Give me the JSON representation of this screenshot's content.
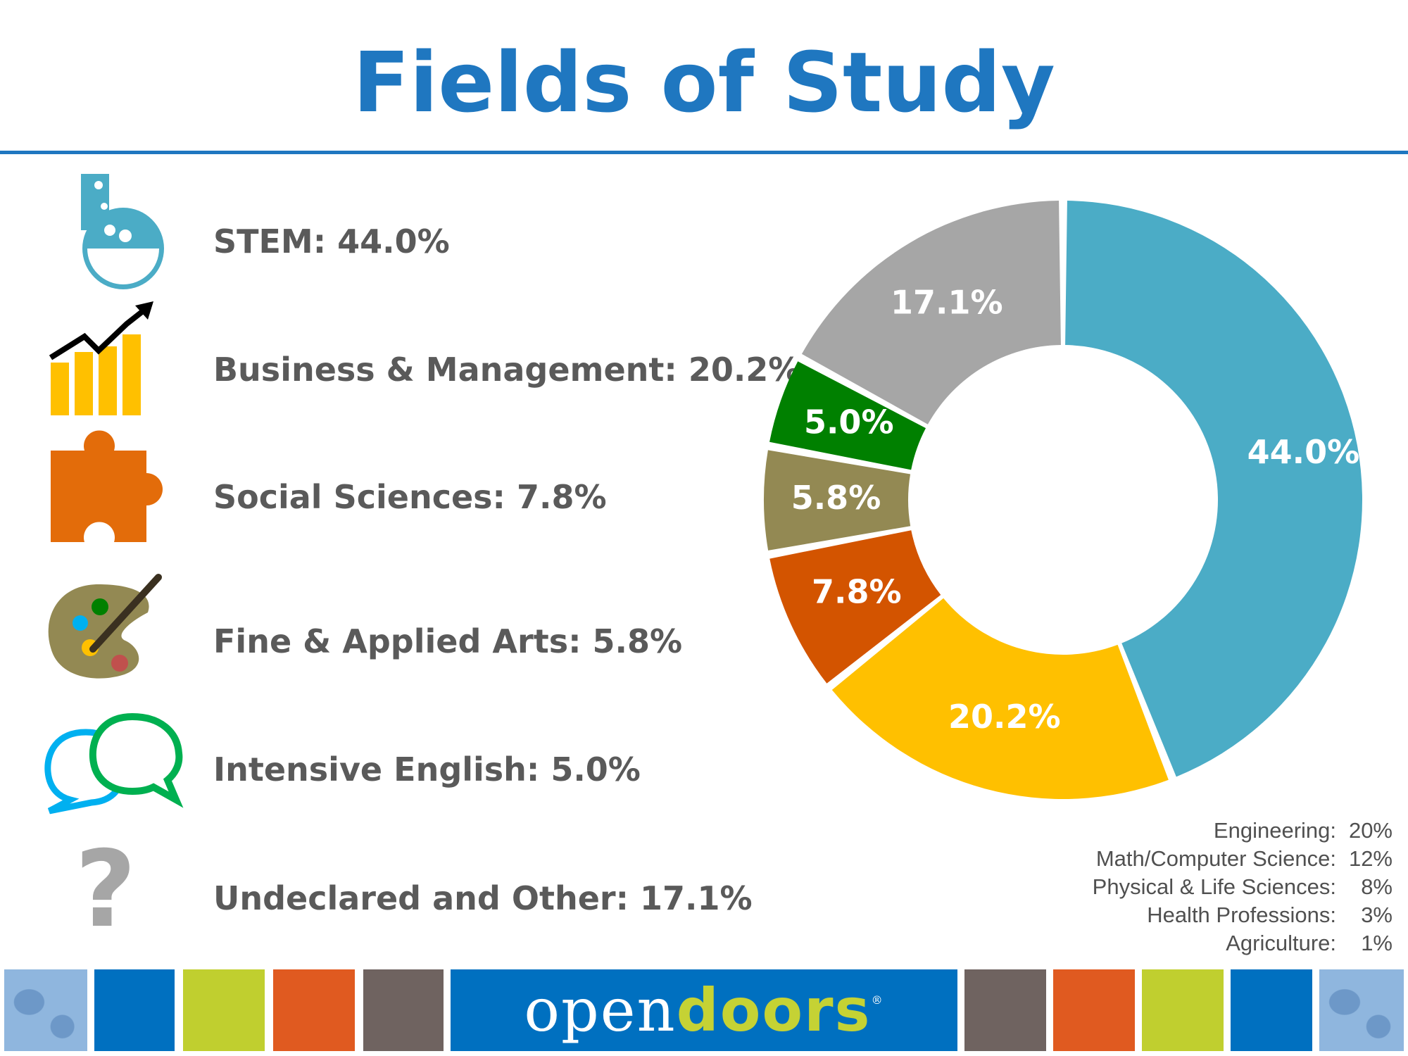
{
  "title": "Fields of Study",
  "fields": [
    {
      "label": "STEM:  44.0%",
      "icon": "flask-icon",
      "color": "#4bacc6"
    },
    {
      "label": "Business & Management:  20.2%",
      "icon": "growth-chart-icon",
      "color": "#ffc000"
    },
    {
      "label": "Social Sciences:  7.8%",
      "icon": "puzzle-piece-icon",
      "color": "#e36c0a"
    },
    {
      "label": "Fine & Applied Arts:  5.8%",
      "icon": "paint-palette-icon",
      "color": "#938953"
    },
    {
      "label": "Intensive English:  5.0%",
      "icon": "speech-bubbles-icon",
      "color": "#00b050"
    },
    {
      "label": "Undeclared and Other: 17.1%",
      "icon": "question-mark-icon",
      "color": "#a6a6a6"
    }
  ],
  "chart_data": {
    "type": "pie",
    "variant": "donut",
    "slices": [
      {
        "label": "44.0%",
        "value": 44.0,
        "color": "#4bacc6"
      },
      {
        "label": "20.2%",
        "value": 20.2,
        "color": "#ffc000"
      },
      {
        "label": "7.8%",
        "value": 7.8,
        "color": "#d35400"
      },
      {
        "label": "5.8%",
        "value": 5.8,
        "color": "#938953"
      },
      {
        "label": "5.0%",
        "value": 5.0,
        "color": "#008000"
      },
      {
        "label": "17.1%",
        "value": 17.1,
        "color": "#a6a6a6"
      }
    ]
  },
  "stem_breakdown": [
    {
      "label": "Engineering:",
      "value": "20%"
    },
    {
      "label": "Math/Computer Science:",
      "value": "12%"
    },
    {
      "label": "Physical & Life Sciences:",
      "value": "8%"
    },
    {
      "label": "Health Professions:",
      "value": "3%"
    },
    {
      "label": "Agriculture:",
      "value": "1%"
    }
  ],
  "footer": {
    "logo_open": "open",
    "logo_doors": "doors",
    "logo_reg": "®",
    "tile_colors": [
      "#0070c0",
      "#c0cf2f",
      "#e05a20",
      "#6f6360"
    ]
  }
}
